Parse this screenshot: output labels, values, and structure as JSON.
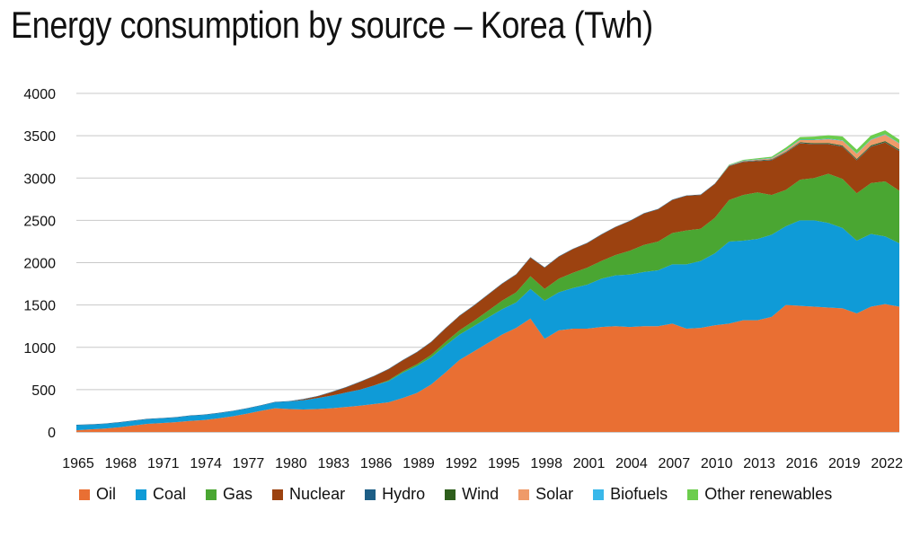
{
  "title": "Energy consumption by source – Korea (Twh)",
  "colors": {
    "Oil": "#e96f33",
    "Coal": "#0f9bd7",
    "Gas": "#4aa632",
    "Nuclear": "#9c4210",
    "Hydro": "#1d5e86",
    "Wind": "#2e5e1c",
    "Solar": "#ef9a69",
    "Biofuels": "#39b8ea",
    "Other renewables": "#6ccd4d"
  },
  "chart_data": {
    "type": "area",
    "stacked": true,
    "title": "Energy consumption by source – Korea (Twh)",
    "ylim": [
      0,
      4000
    ],
    "yticks": [
      0,
      500,
      1000,
      1500,
      2000,
      2500,
      3000,
      3500,
      4000
    ],
    "xlim": [
      1965,
      2023
    ],
    "xticks": [
      1965,
      1968,
      1971,
      1974,
      1977,
      1980,
      1983,
      1986,
      1989,
      1992,
      1995,
      1998,
      2001,
      2004,
      2007,
      2010,
      2013,
      2016,
      2019,
      2022
    ],
    "grid": true,
    "legend_position": "bottom",
    "x": [
      1965,
      1966,
      1967,
      1968,
      1969,
      1970,
      1971,
      1972,
      1973,
      1974,
      1975,
      1976,
      1977,
      1978,
      1979,
      1980,
      1981,
      1982,
      1983,
      1984,
      1985,
      1986,
      1987,
      1988,
      1989,
      1990,
      1991,
      1992,
      1993,
      1994,
      1995,
      1996,
      1997,
      1998,
      1999,
      2000,
      2001,
      2002,
      2003,
      2004,
      2005,
      2006,
      2007,
      2008,
      2009,
      2010,
      2011,
      2012,
      2013,
      2014,
      2015,
      2016,
      2017,
      2018,
      2019,
      2020,
      2021,
      2022,
      2023
    ],
    "series": [
      {
        "name": "Oil",
        "values": [
          20,
          30,
          40,
          55,
          75,
          95,
          105,
          115,
          130,
          140,
          160,
          185,
          215,
          250,
          280,
          270,
          265,
          270,
          280,
          295,
          310,
          330,
          350,
          400,
          460,
          560,
          700,
          850,
          950,
          1050,
          1150,
          1230,
          1340,
          1100,
          1200,
          1220,
          1220,
          1240,
          1250,
          1240,
          1250,
          1250,
          1280,
          1220,
          1230,
          1260,
          1280,
          1320,
          1320,
          1360,
          1500,
          1490,
          1480,
          1470,
          1460,
          1400,
          1480,
          1510,
          1480
        ]
      },
      {
        "name": "Coal",
        "values": [
          60,
          55,
          55,
          55,
          55,
          55,
          55,
          55,
          60,
          60,
          60,
          60,
          60,
          60,
          70,
          90,
          110,
          130,
          150,
          170,
          190,
          220,
          250,
          300,
          320,
          320,
          320,
          300,
          300,
          300,
          300,
          300,
          350,
          450,
          450,
          480,
          520,
          570,
          600,
          620,
          640,
          660,
          700,
          760,
          790,
          850,
          970,
          940,
          960,
          970,
          930,
          1010,
          1020,
          1000,
          950,
          860,
          860,
          800,
          750
        ]
      },
      {
        "name": "Gas",
        "values": [
          0,
          0,
          0,
          0,
          0,
          0,
          0,
          0,
          0,
          0,
          0,
          0,
          0,
          0,
          0,
          0,
          0,
          0,
          0,
          0,
          0,
          0,
          10,
          15,
          20,
          30,
          40,
          50,
          60,
          80,
          100,
          120,
          150,
          140,
          160,
          180,
          200,
          210,
          240,
          280,
          320,
          340,
          370,
          400,
          380,
          420,
          490,
          540,
          550,
          470,
          430,
          480,
          500,
          580,
          580,
          560,
          600,
          650,
          620
        ]
      },
      {
        "name": "Nuclear",
        "values": [
          0,
          0,
          0,
          0,
          0,
          0,
          0,
          0,
          0,
          0,
          0,
          0,
          0,
          0,
          0,
          0,
          10,
          20,
          40,
          60,
          90,
          110,
          130,
          130,
          140,
          150,
          160,
          170,
          180,
          190,
          200,
          210,
          220,
          250,
          260,
          280,
          290,
          310,
          330,
          350,
          370,
          380,
          390,
          410,
          400,
          400,
          400,
          390,
          370,
          410,
          440,
          430,
          400,
          350,
          380,
          390,
          430,
          460,
          470
        ]
      },
      {
        "name": "Hydro",
        "values": [
          5,
          5,
          5,
          5,
          5,
          5,
          5,
          5,
          5,
          5,
          5,
          5,
          5,
          5,
          5,
          5,
          5,
          5,
          5,
          5,
          5,
          5,
          5,
          5,
          5,
          5,
          5,
          5,
          5,
          5,
          5,
          5,
          5,
          5,
          5,
          5,
          5,
          5,
          5,
          5,
          5,
          5,
          5,
          5,
          5,
          5,
          5,
          5,
          5,
          5,
          5,
          5,
          5,
          5,
          5,
          5,
          5,
          5,
          5
        ]
      },
      {
        "name": "Wind",
        "values": [
          0,
          0,
          0,
          0,
          0,
          0,
          0,
          0,
          0,
          0,
          0,
          0,
          0,
          0,
          0,
          0,
          0,
          0,
          0,
          0,
          0,
          0,
          0,
          0,
          0,
          0,
          0,
          0,
          0,
          0,
          0,
          0,
          0,
          0,
          0,
          0,
          0,
          0,
          0,
          0,
          0,
          0,
          0,
          0,
          0,
          0,
          2,
          3,
          4,
          5,
          6,
          8,
          8,
          9,
          10,
          10,
          11,
          12,
          12
        ]
      },
      {
        "name": "Solar",
        "values": [
          0,
          0,
          0,
          0,
          0,
          0,
          0,
          0,
          0,
          0,
          0,
          0,
          0,
          0,
          0,
          0,
          0,
          0,
          0,
          0,
          0,
          0,
          0,
          0,
          0,
          0,
          0,
          0,
          0,
          0,
          0,
          0,
          0,
          0,
          0,
          0,
          0,
          0,
          0,
          0,
          0,
          0,
          0,
          0,
          0,
          0,
          3,
          5,
          8,
          12,
          18,
          25,
          35,
          45,
          55,
          60,
          65,
          75,
          70
        ]
      },
      {
        "name": "Biofuels",
        "values": [
          0,
          0,
          0,
          0,
          0,
          0,
          0,
          0,
          0,
          0,
          0,
          0,
          0,
          0,
          0,
          0,
          0,
          0,
          0,
          0,
          0,
          0,
          0,
          0,
          0,
          0,
          0,
          0,
          0,
          0,
          0,
          0,
          0,
          0,
          0,
          0,
          0,
          0,
          0,
          0,
          0,
          0,
          0,
          0,
          0,
          0,
          3,
          4,
          5,
          5,
          6,
          6,
          6,
          6,
          6,
          6,
          6,
          6,
          6
        ]
      },
      {
        "name": "Other renewables",
        "values": [
          0,
          0,
          0,
          0,
          0,
          0,
          0,
          0,
          0,
          0,
          0,
          0,
          0,
          0,
          0,
          0,
          0,
          0,
          0,
          0,
          0,
          0,
          0,
          0,
          0,
          0,
          0,
          0,
          0,
          0,
          0,
          0,
          0,
          0,
          0,
          0,
          0,
          0,
          0,
          0,
          0,
          0,
          0,
          0,
          0,
          0,
          5,
          8,
          12,
          15,
          25,
          30,
          35,
          40,
          45,
          45,
          45,
          45,
          40
        ]
      }
    ]
  }
}
